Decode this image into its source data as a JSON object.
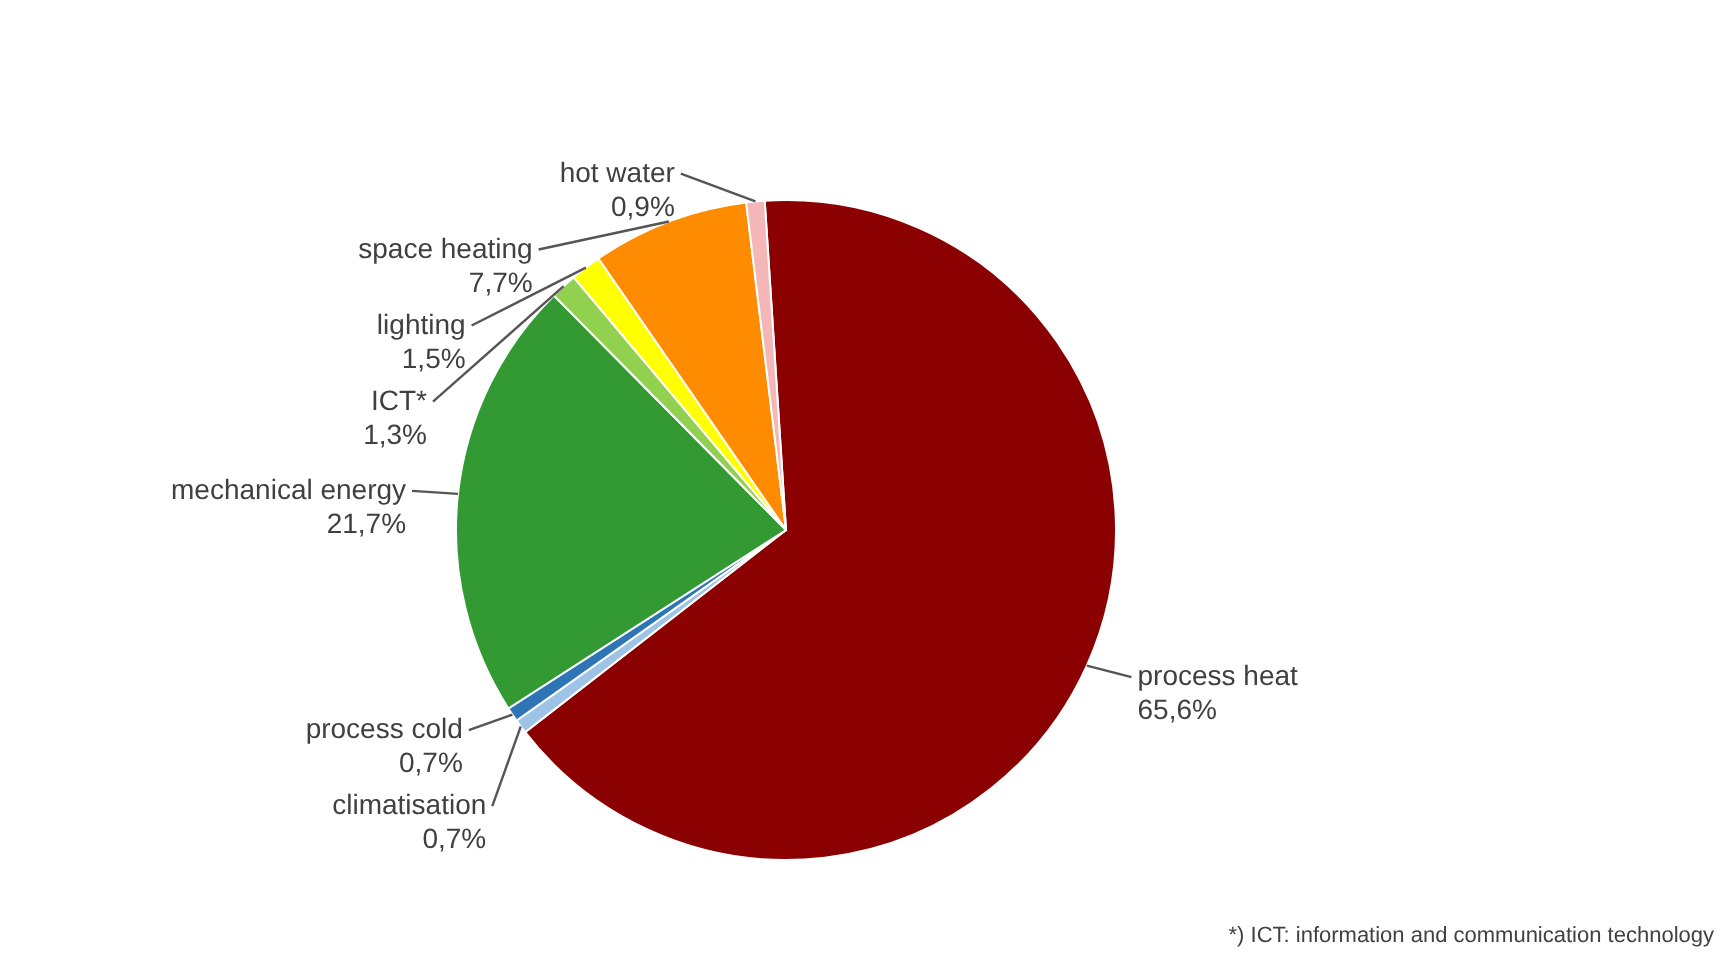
{
  "chart_data": {
    "type": "pie",
    "categories": [
      "process heat",
      "climatisation",
      "process cold",
      "mechanical energy",
      "ICT*",
      "lighting",
      "space heating",
      "hot water"
    ],
    "values": [
      65.6,
      0.7,
      0.7,
      21.7,
      1.3,
      1.5,
      7.7,
      0.9
    ],
    "colors": [
      "#8b0000",
      "#9dc3e6",
      "#2e75b6",
      "#339933",
      "#92d050",
      "#ffff00",
      "#ff8c00",
      "#f4b6b6"
    ],
    "value_labels": [
      "65,6%",
      "0,7%",
      "0,7%",
      "21,7%",
      "1,3%",
      "1,5%",
      "7,7%",
      "0,9%"
    ],
    "annotations": [
      "*) ICT: information and communication technology"
    ]
  }
}
